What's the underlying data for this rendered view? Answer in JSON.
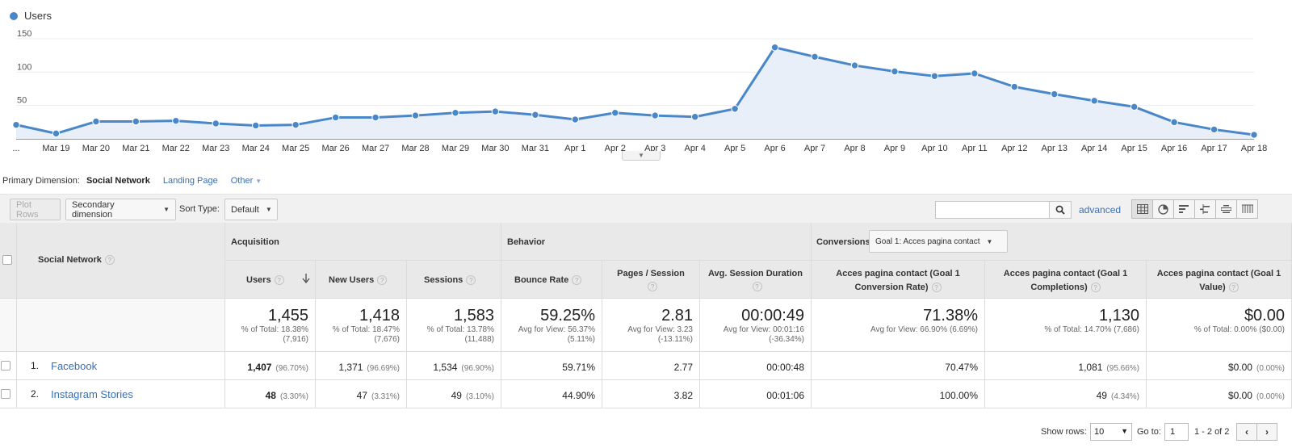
{
  "chart": {
    "legend_label": "Users",
    "color": "#4a87c9"
  },
  "chart_data": {
    "type": "area",
    "title": "",
    "series": [
      {
        "name": "Users",
        "values": [
          21,
          8,
          26,
          26,
          27,
          23,
          20,
          21,
          32,
          32,
          35,
          39,
          41,
          36,
          29,
          39,
          35,
          33,
          45,
          137,
          123,
          110,
          101,
          94,
          98,
          78,
          67,
          57,
          48,
          25,
          14,
          6
        ]
      }
    ],
    "x": [
      "...",
      "Mar 19",
      "Mar 20",
      "Mar 21",
      "Mar 22",
      "Mar 23",
      "Mar 24",
      "Mar 25",
      "Mar 26",
      "Mar 27",
      "Mar 28",
      "Mar 29",
      "Mar 30",
      "Mar 31",
      "Apr 1",
      "Apr 2",
      "Apr 3",
      "Apr 4",
      "Apr 5",
      "Apr 6",
      "Apr 7",
      "Apr 8",
      "Apr 9",
      "Apr 10",
      "Apr 11",
      "Apr 12",
      "Apr 13",
      "Apr 14",
      "Apr 15",
      "Apr 16",
      "Apr 17",
      "Apr 18"
    ],
    "yticks": [
      "50",
      "100",
      "150"
    ],
    "ylim": [
      0,
      150
    ],
    "grid": true,
    "legend": "top-left"
  },
  "dimension_bar": {
    "label": "Primary Dimension:",
    "active": "Social Network",
    "landing_page": "Landing Page",
    "other": "Other"
  },
  "toolbar": {
    "plot_rows": "Plot Rows",
    "secondary_dimension": "Secondary dimension",
    "sort_type_label": "Sort Type:",
    "sort_type_value": "Default",
    "search_value": "",
    "advanced": "advanced"
  },
  "table": {
    "groups": {
      "acquisition": "Acquisition",
      "behavior": "Behavior",
      "conversions": "Conversions",
      "goal_select": "Goal 1: Acces pagina contact"
    },
    "dimension_header": "Social Network",
    "columns": {
      "users": "Users",
      "new_users": "New Users",
      "sessions": "Sessions",
      "bounce_rate": "Bounce Rate",
      "pages_session": "Pages / Session",
      "avg_duration": "Avg. Session Duration",
      "conv_rate": "Acces pagina contact (Goal 1 Conversion Rate)",
      "completions": "Acces pagina contact (Goal 1 Completions)",
      "value": "Acces pagina contact (Goal 1 Value)"
    },
    "summary": {
      "users": {
        "big": "1,455",
        "l1": "% of Total: 18.38%",
        "l2": "(7,916)"
      },
      "new_users": {
        "big": "1,418",
        "l1": "% of Total: 18.47%",
        "l2": "(7,676)"
      },
      "sessions": {
        "big": "1,583",
        "l1": "% of Total: 13.78%",
        "l2": "(11,488)"
      },
      "bounce_rate": {
        "big": "59.25%",
        "l1": "Avg for View: 56.37%",
        "l2": "(5.11%)"
      },
      "pages_session": {
        "big": "2.81",
        "l1": "Avg for View: 3.23",
        "l2": "(-13.11%)"
      },
      "avg_duration": {
        "big": "00:00:49",
        "l1": "Avg for View: 00:01:16",
        "l2": "(-36.34%)"
      },
      "conv_rate": {
        "big": "71.38%",
        "l1": "Avg for View: 66.90% (6.69%)"
      },
      "completions": {
        "big": "1,130",
        "l1": "% of Total: 14.70% (7,686)"
      },
      "value": {
        "big": "$0.00",
        "l1": "% of Total: 0.00% ($0.00)"
      }
    },
    "rows": [
      {
        "index": "1.",
        "name": "Facebook",
        "users": "1,407",
        "users_pct": "(96.70%)",
        "new_users": "1,371",
        "new_users_pct": "(96.69%)",
        "sessions": "1,534",
        "sessions_pct": "(96.90%)",
        "bounce_rate": "59.71%",
        "pages_session": "2.77",
        "avg_duration": "00:00:48",
        "conv_rate": "70.47%",
        "completions": "1,081",
        "completions_pct": "(95.66%)",
        "value": "$0.00",
        "value_pct": "(0.00%)"
      },
      {
        "index": "2.",
        "name": "Instagram Stories",
        "users": "48",
        "users_pct": "(3.30%)",
        "new_users": "47",
        "new_users_pct": "(3.31%)",
        "sessions": "49",
        "sessions_pct": "(3.10%)",
        "bounce_rate": "44.90%",
        "pages_session": "3.82",
        "avg_duration": "00:01:06",
        "conv_rate": "100.00%",
        "completions": "49",
        "completions_pct": "(4.34%)",
        "value": "$0.00",
        "value_pct": "(0.00%)"
      }
    ]
  },
  "pagination": {
    "show_rows_label": "Show rows:",
    "show_rows_value": "10",
    "goto_label": "Go to:",
    "goto_value": "1",
    "range": "1 - 2 of 2"
  }
}
